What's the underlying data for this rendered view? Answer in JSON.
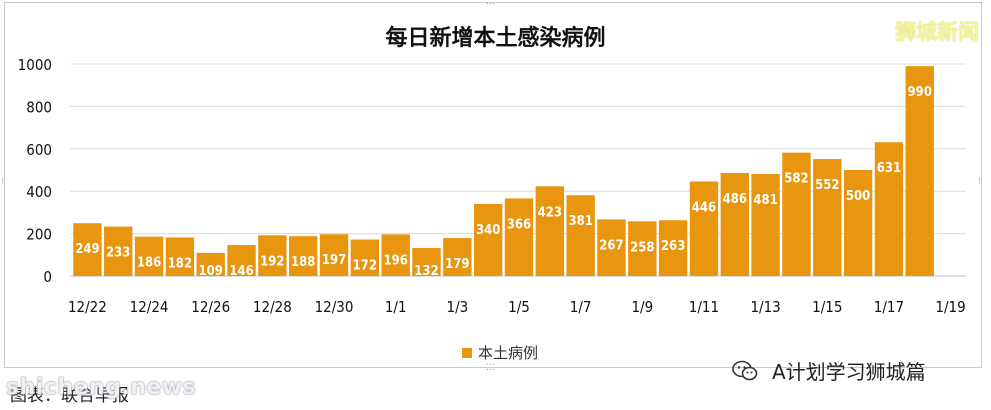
{
  "watermark_text": "狮城新闻",
  "legend_label": "本土病例",
  "source_account": "A计划学习狮城篇",
  "caption": "图表：联合早报",
  "site_watermark": "shicheng.news",
  "colors": {
    "bar": "#e8950f",
    "bar_label": "#ffffff",
    "grid": "#dcdcdc"
  },
  "chart_data": {
    "type": "bar",
    "title": "每日新增本土感染病例",
    "xlabel": "",
    "ylabel": "",
    "ylim": [
      0,
      1000
    ],
    "yticks": [
      0,
      200,
      400,
      600,
      800,
      1000
    ],
    "grid": true,
    "legend_position": "bottom",
    "x_tick_labels": [
      "12/22",
      "12/24",
      "12/26",
      "12/28",
      "12/30",
      "1/1",
      "1/3",
      "1/5",
      "1/7",
      "1/9",
      "1/11",
      "1/13",
      "1/15",
      "1/17",
      "1/19"
    ],
    "series": [
      {
        "name": "本土病例",
        "values": [
          249,
          233,
          186,
          182,
          109,
          146,
          192,
          188,
          197,
          172,
          196,
          132,
          179,
          340,
          366,
          423,
          381,
          267,
          258,
          263,
          446,
          486,
          481,
          582,
          552,
          500,
          631,
          990
        ]
      }
    ]
  }
}
